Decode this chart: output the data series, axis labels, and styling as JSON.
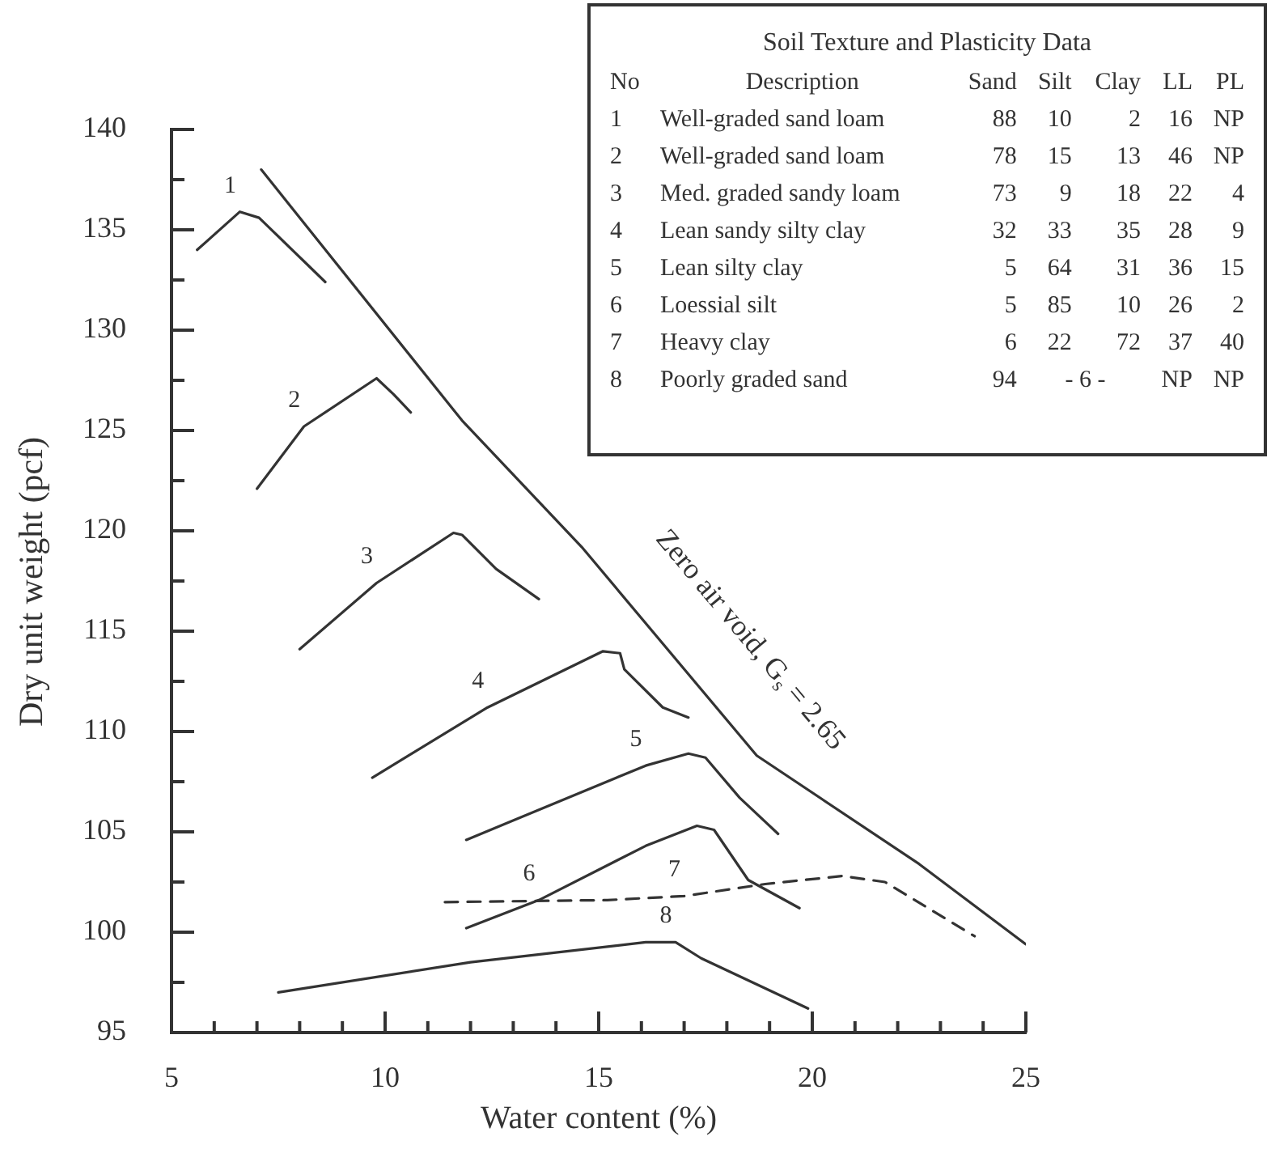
{
  "chart_data": {
    "type": "line",
    "xlabel": "Water content (%)",
    "ylabel": "Dry unit weight (pcf)",
    "xlim": [
      5,
      25
    ],
    "ylim": [
      95,
      140
    ],
    "xticks": [
      5,
      {
        "value": 6,
        "label": null
      },
      {
        "value": 7,
        "label": null
      },
      {
        "value": 8,
        "label": null
      },
      {
        "value": 9,
        "label": null
      },
      10,
      {
        "value": 11,
        "label": null
      },
      {
        "value": 12,
        "label": null
      },
      {
        "value": 13,
        "label": null
      },
      {
        "value": 14,
        "label": null
      },
      15,
      {
        "value": 16,
        "label": null
      },
      {
        "value": 17,
        "label": null
      },
      {
        "value": 18,
        "label": null
      },
      {
        "value": 19,
        "label": null
      },
      20,
      {
        "value": 21,
        "label": null
      },
      {
        "value": 22,
        "label": null
      },
      {
        "value": 23,
        "label": null
      },
      {
        "value": 24,
        "label": null
      },
      25
    ],
    "yticks": [
      95,
      {
        "value": 97.5,
        "label": null
      },
      100,
      {
        "value": 102.5,
        "label": null
      },
      105,
      {
        "value": 107.5,
        "label": null
      },
      110,
      {
        "value": 112.5,
        "label": null
      },
      115,
      {
        "value": 117.5,
        "label": null
      },
      120,
      {
        "value": 122.5,
        "label": null
      },
      125,
      {
        "value": 127.5,
        "label": null
      },
      130,
      {
        "value": 132.5,
        "label": null
      },
      135,
      {
        "value": 137.5,
        "label": null
      },
      140
    ],
    "marker": "none",
    "line_style": "solid",
    "legend": false,
    "series": [
      {
        "name": "1",
        "color": "#333333",
        "x": [
          5.6,
          6.6,
          7.05,
          8.6
        ],
        "values": [
          134,
          135.9,
          135.6,
          132.4
        ]
      },
      {
        "name": "2",
        "color": "#333333",
        "x": [
          7.0,
          8.1,
          9.8,
          10.2,
          10.6
        ],
        "values": [
          122.1,
          125.2,
          127.6,
          126.8,
          125.9
        ]
      },
      {
        "name": "3",
        "color": "#333333",
        "x": [
          8.0,
          9.8,
          11.6,
          11.8,
          12.6,
          13.6
        ],
        "values": [
          114.1,
          117.4,
          119.9,
          119.8,
          118.1,
          116.6
        ]
      },
      {
        "name": "4",
        "color": "#333333",
        "x": [
          9.7,
          12.4,
          15.1,
          15.5,
          15.6,
          16.5,
          17.1
        ],
        "values": [
          107.7,
          111.2,
          114,
          113.9,
          113.1,
          111.2,
          110.7
        ]
      },
      {
        "name": "5",
        "color": "#333333",
        "x": [
          11.9,
          16.1,
          17.1,
          17.5,
          18.3,
          19.2
        ],
        "values": [
          104.6,
          108.3,
          108.9,
          108.7,
          106.7,
          104.9
        ]
      },
      {
        "name": "6",
        "color": "#333333",
        "x": [
          11.9,
          13.6,
          16.1,
          17.3,
          17.7,
          18.5,
          19.7
        ],
        "values": [
          100.2,
          101.6,
          104.3,
          105.3,
          105.1,
          102.6,
          101.2
        ]
      },
      {
        "name": "7",
        "color": "#333333",
        "line_style": "dashed",
        "x": [
          11.4,
          15.2,
          17.0,
          18.9,
          20.7,
          21.7,
          23.8
        ],
        "values": [
          101.5,
          101.6,
          101.8,
          102.4,
          102.8,
          102.5,
          99.8
        ]
      },
      {
        "name": "8",
        "color": "#333333",
        "x": [
          7.5,
          12.0,
          16.1,
          16.8,
          17.4,
          19.9
        ],
        "values": [
          97,
          98.5,
          99.5,
          99.5,
          98.7,
          96.2
        ]
      },
      {
        "name": "Zero air void, G$_{s}$ = 2.65",
        "color": "#333333",
        "x": [
          7.1,
          11.8,
          14.6,
          18.7,
          22.5,
          25
        ],
        "values": [
          138,
          125.5,
          119.2,
          108.8,
          103.4,
          99.4
        ]
      }
    ],
    "annotations": [
      "Soil Texture and Plasticity Data",
      "No\tDescription\tSand\tSilt\tClay\tLL\tPL",
      "1\tWell-graded sand loam\t88\t10\t2\t16\tNP",
      "2\tWell-graded sand loam\t78\t15\t13\t46\tNP",
      "3\tMed. graded sandy loam\t73\t9\t18\t22\t4",
      "4\tLean sandy silty clay\t32\t33\t35\t28\t9",
      "5\tLean silty clay\t5\t64\t31\t36\t15",
      "6\tLoessial silt\t5\t85\t10\t26\t2",
      "7\tHeavy clay\t6\t22\t72\t37\t40",
      "8\tPoorly graded sand\t94\t- 6 -\tNP\tNP"
    ]
  }
}
